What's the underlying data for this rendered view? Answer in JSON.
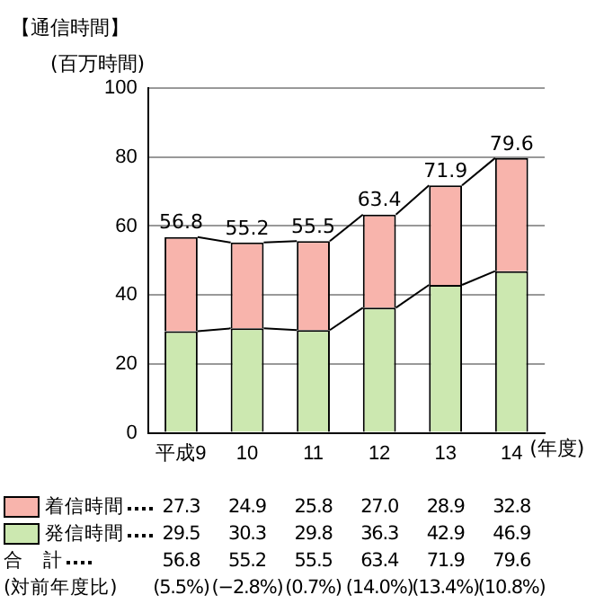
{
  "chart_data": {
    "type": "bar",
    "title": "【通信時間】",
    "ylabel": "(百万時間)",
    "xlabel": "(年度)",
    "categories": [
      "平成9",
      "10",
      "11",
      "12",
      "13",
      "14"
    ],
    "stacked": true,
    "series": [
      {
        "name": "発信時間",
        "color": "#cce8b0",
        "values": [
          29.5,
          30.3,
          29.8,
          36.3,
          42.9,
          46.9
        ],
        "value_labels": [
          "29.5",
          "30.3",
          "29.8",
          "36.3",
          "42.9",
          "46.9"
        ]
      },
      {
        "name": "着信時間",
        "color": "#f8b4ac",
        "values": [
          27.3,
          24.9,
          25.8,
          27.0,
          28.9,
          32.8
        ],
        "value_labels": [
          "27.3",
          "24.9",
          "25.8",
          "27.0",
          "28.9",
          "32.8"
        ]
      }
    ],
    "totals": [
      "56.8",
      "55.2",
      "55.5",
      "63.4",
      "71.9",
      "79.6"
    ],
    "annotations": [
      "合　計",
      "(対前年度比)",
      "(5.5%)",
      "(−2.8%)",
      "(0.7%)",
      "(14.0%)",
      "(13.4%)",
      "(10.8%)"
    ],
    "ylim": [
      0,
      100
    ],
    "yticks": [
      0,
      20,
      40,
      60,
      80,
      100
    ],
    "grid": "y",
    "legend": "bottom"
  }
}
